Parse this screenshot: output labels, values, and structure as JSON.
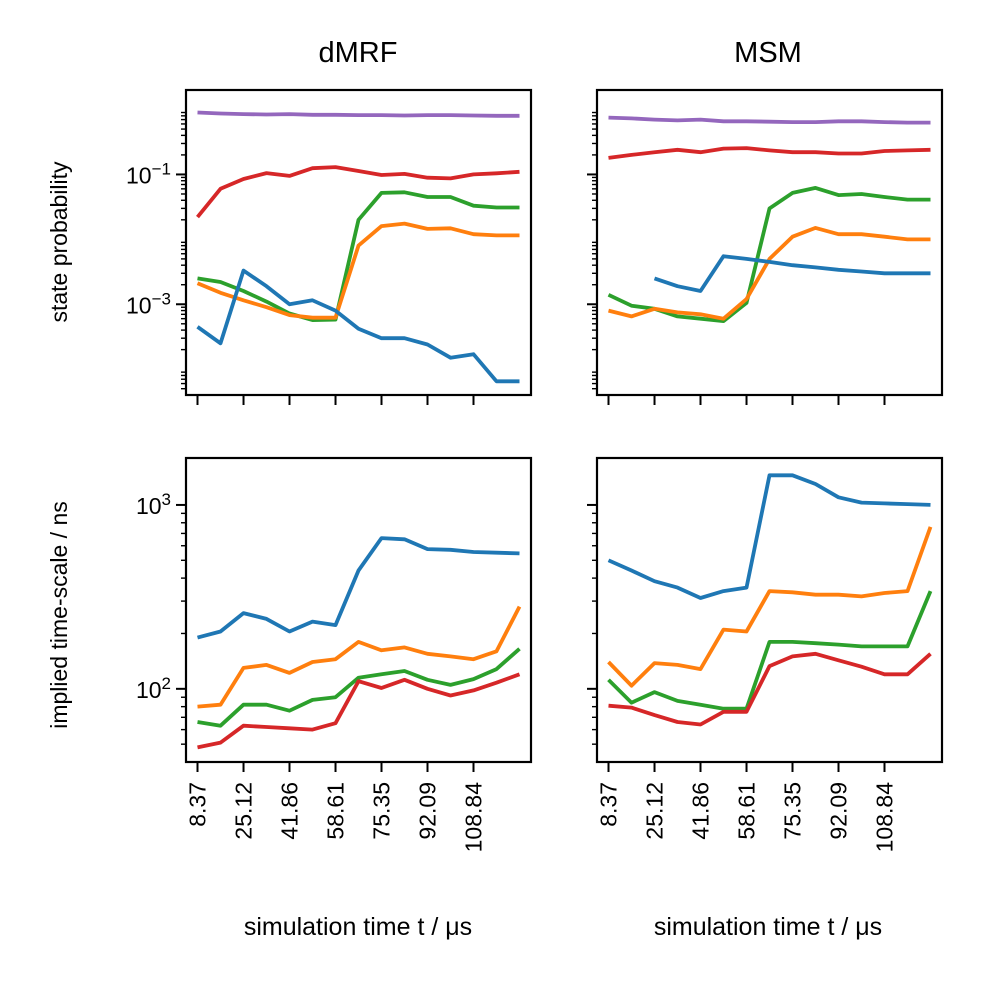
{
  "figure": {
    "column_titles": [
      "dMRF",
      "MSM"
    ],
    "xlabel": "simulation time t / μs",
    "ylabel_top": "state probability",
    "ylabel_bottom": "implied time-scale / ns"
  },
  "colors": {
    "blue": "#1f77b4",
    "orange": "#ff7f0e",
    "green": "#2ca02c",
    "red": "#d62728",
    "purple": "#9467bd"
  },
  "chart_data": [
    {
      "id": "dmrf-prob",
      "type": "line",
      "title": "dMRF",
      "ylabel": "state probability",
      "xlabel": "",
      "yscale": "log",
      "xlim": [
        4.18,
        129.77
      ],
      "ylim": [
        4e-05,
        2.0
      ],
      "xticks": [
        8.37,
        25.12,
        41.86,
        58.61,
        75.35,
        92.09,
        108.84
      ],
      "xtick_labels_visible": false,
      "yticks": [
        0.1,
        0.001
      ],
      "ytick_labels": [
        "10^{−1}",
        "10^{−3}"
      ],
      "x": [
        8.37,
        16.74,
        25.12,
        33.49,
        41.86,
        50.23,
        58.61,
        66.98,
        75.35,
        83.72,
        92.09,
        100.46,
        108.84,
        117.21,
        125.58
      ],
      "series": [
        {
          "color": "#9467bd",
          "values": [
            0.9,
            0.87,
            0.85,
            0.84,
            0.85,
            0.83,
            0.83,
            0.82,
            0.82,
            0.81,
            0.82,
            0.82,
            0.81,
            0.8,
            0.8
          ]
        },
        {
          "color": "#d62728",
          "values": [
            0.022,
            0.06,
            0.085,
            0.105,
            0.095,
            0.125,
            0.13,
            0.113,
            0.098,
            0.102,
            0.089,
            0.087,
            0.1,
            0.104,
            0.11
          ]
        },
        {
          "color": "#2ca02c",
          "values": [
            0.0025,
            0.0022,
            0.0016,
            0.0011,
            0.00072,
            0.00057,
            0.00058,
            0.02,
            0.052,
            0.053,
            0.045,
            0.045,
            0.033,
            0.031,
            0.031
          ]
        },
        {
          "color": "#ff7f0e",
          "values": [
            0.0021,
            0.0015,
            0.00115,
            0.0009,
            0.00068,
            0.00062,
            0.00062,
            0.008,
            0.016,
            0.0175,
            0.0145,
            0.0148,
            0.012,
            0.0115,
            0.0115
          ]
        },
        {
          "color": "#1f77b4",
          "values": [
            0.00045,
            0.00025,
            0.0033,
            0.0019,
            0.001,
            0.00115,
            0.0008,
            0.00042,
            0.0003,
            0.0003,
            0.00024,
            0.00015,
            0.00017,
            6.5e-05,
            6.5e-05
          ]
        }
      ]
    },
    {
      "id": "msm-prob",
      "type": "line",
      "title": "MSM",
      "ylabel": "",
      "xlabel": "",
      "yscale": "log",
      "xlim": [
        4.18,
        129.77
      ],
      "ylim": [
        4e-05,
        2.0
      ],
      "xticks": [
        8.37,
        25.12,
        41.86,
        58.61,
        75.35,
        92.09,
        108.84
      ],
      "xtick_labels_visible": false,
      "yticks": [
        0.1,
        0.001
      ],
      "ytick_labels_visible": false,
      "x": [
        8.37,
        16.74,
        25.12,
        33.49,
        41.86,
        50.23,
        58.61,
        66.98,
        75.35,
        83.72,
        92.09,
        100.46,
        108.84,
        117.21,
        125.58
      ],
      "series": [
        {
          "color": "#9467bd",
          "values": [
            0.75,
            0.73,
            0.7,
            0.68,
            0.7,
            0.66,
            0.66,
            0.65,
            0.64,
            0.64,
            0.66,
            0.66,
            0.64,
            0.63,
            0.63
          ]
        },
        {
          "color": "#d62728",
          "values": [
            0.18,
            0.2,
            0.22,
            0.24,
            0.22,
            0.25,
            0.255,
            0.235,
            0.22,
            0.22,
            0.21,
            0.21,
            0.23,
            0.235,
            0.24
          ]
        },
        {
          "color": "#2ca02c",
          "values": [
            0.0014,
            0.00095,
            0.00085,
            0.00065,
            0.0006,
            0.00055,
            0.00105,
            0.03,
            0.052,
            0.062,
            0.048,
            0.05,
            0.045,
            0.041,
            0.041
          ]
        },
        {
          "color": "#ff7f0e",
          "values": [
            0.0008,
            0.00065,
            0.00085,
            0.00075,
            0.0007,
            0.0006,
            0.0012,
            0.005,
            0.011,
            0.015,
            0.012,
            0.012,
            0.011,
            0.01,
            0.01
          ]
        },
        {
          "color": "#1f77b4",
          "values": [
            null,
            null,
            0.0025,
            0.0019,
            0.0016,
            0.0055,
            0.005,
            0.0045,
            0.004,
            0.0037,
            0.0034,
            0.0032,
            0.003,
            0.003,
            0.003
          ]
        }
      ]
    },
    {
      "id": "dmrf-its",
      "type": "line",
      "title": "",
      "ylabel": "implied time-scale / ns",
      "xlabel": "simulation time t / μs",
      "yscale": "log",
      "xlim": [
        4.18,
        129.77
      ],
      "ylim": [
        40,
        1800
      ],
      "xticks": [
        8.37,
        25.12,
        41.86,
        58.61,
        75.35,
        92.09,
        108.84
      ],
      "xtick_labels": [
        "8.37",
        "25.12",
        "41.86",
        "58.61",
        "75.35",
        "92.09",
        "108.84"
      ],
      "yticks": [
        1000,
        100
      ],
      "ytick_labels": [
        "10^{3}",
        "10^{2}"
      ],
      "x": [
        8.37,
        16.74,
        25.12,
        33.49,
        41.86,
        50.23,
        58.61,
        66.98,
        75.35,
        83.72,
        92.09,
        100.46,
        108.84,
        117.21,
        125.58
      ],
      "series": [
        {
          "color": "#1f77b4",
          "values": [
            190,
            205,
            258,
            240,
            205,
            232,
            222,
            440,
            660,
            650,
            575,
            570,
            555,
            550,
            545
          ]
        },
        {
          "color": "#ff7f0e",
          "values": [
            80,
            82,
            130,
            135,
            122,
            140,
            145,
            180,
            162,
            168,
            155,
            150,
            145,
            160,
            280
          ]
        },
        {
          "color": "#2ca02c",
          "values": [
            66,
            63,
            82,
            82,
            76,
            87,
            90,
            115,
            120,
            125,
            112,
            105,
            113,
            128,
            165
          ]
        },
        {
          "color": "#d62728",
          "values": [
            48,
            51,
            63,
            62,
            61,
            60,
            65,
            110,
            101,
            112,
            100,
            92,
            98,
            108,
            120
          ]
        }
      ]
    },
    {
      "id": "msm-its",
      "type": "line",
      "title": "",
      "ylabel": "",
      "xlabel": "simulation time t / μs",
      "yscale": "log",
      "xlim": [
        4.18,
        129.77
      ],
      "ylim": [
        40,
        1800
      ],
      "xticks": [
        8.37,
        25.12,
        41.86,
        58.61,
        75.35,
        92.09,
        108.84
      ],
      "xtick_labels": [
        "8.37",
        "25.12",
        "41.86",
        "58.61",
        "75.35",
        "92.09",
        "108.84"
      ],
      "yticks": [
        1000,
        100
      ],
      "ytick_labels_visible": false,
      "x": [
        8.37,
        16.74,
        25.12,
        33.49,
        41.86,
        50.23,
        58.61,
        66.98,
        75.35,
        83.72,
        92.09,
        100.46,
        108.84,
        117.21,
        125.58
      ],
      "series": [
        {
          "color": "#1f77b4",
          "values": [
            500,
            440,
            385,
            355,
            312,
            340,
            355,
            1450,
            1450,
            1300,
            1100,
            1030,
            1020,
            1010,
            1000
          ]
        },
        {
          "color": "#ff7f0e",
          "values": [
            140,
            104,
            138,
            135,
            128,
            210,
            205,
            340,
            335,
            325,
            325,
            318,
            332,
            340,
            760
          ]
        },
        {
          "color": "#2ca02c",
          "values": [
            112,
            84,
            96,
            86,
            82,
            78,
            78,
            180,
            180,
            177,
            174,
            170,
            170,
            170,
            340
          ]
        },
        {
          "color": "#d62728",
          "values": [
            81,
            79,
            72,
            66,
            64,
            75,
            75,
            133,
            150,
            155,
            143,
            132,
            120,
            120,
            155
          ]
        }
      ]
    }
  ]
}
